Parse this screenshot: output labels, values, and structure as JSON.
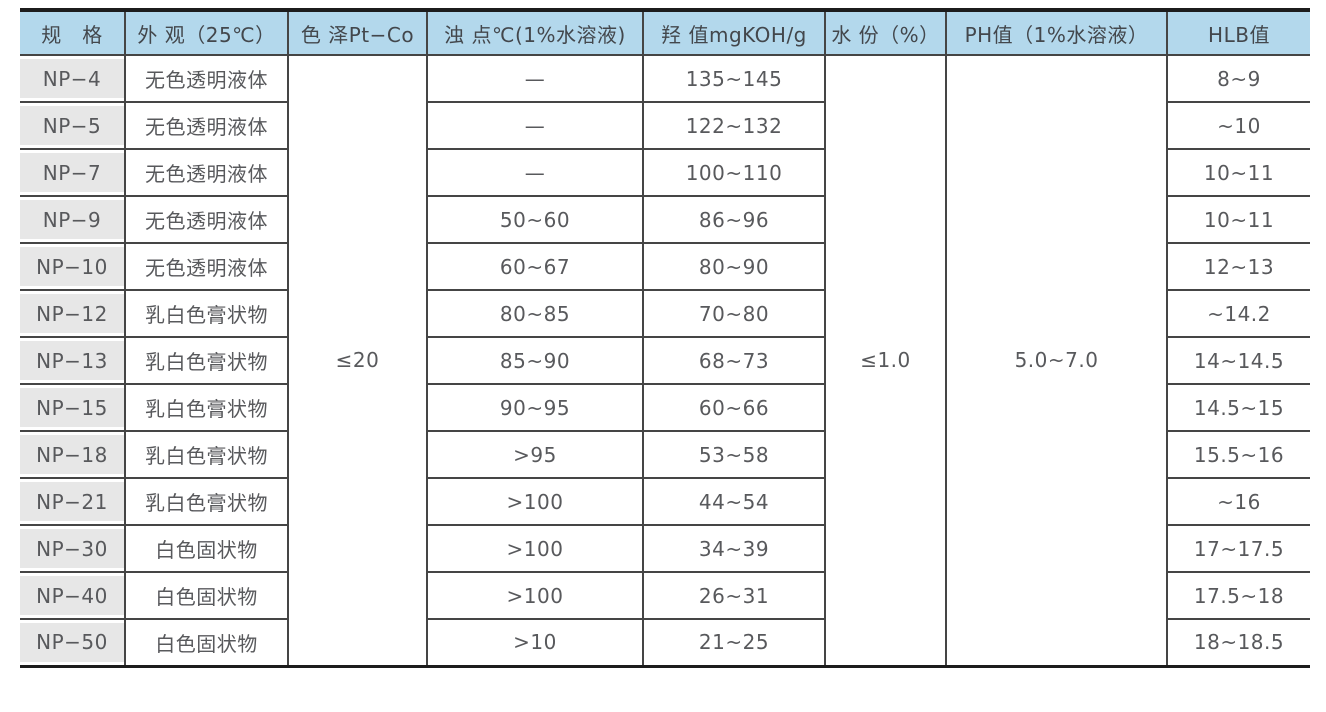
{
  "table": {
    "columns": [
      {
        "key": "spec",
        "label": "规　格"
      },
      {
        "key": "appearance",
        "label": "外 观（25℃）"
      },
      {
        "key": "color",
        "label": "色 泽Pt−Co"
      },
      {
        "key": "cloud_point",
        "label": "浊 点℃(1%水溶液)"
      },
      {
        "key": "hydroxyl",
        "label": "羟 值mgKOH/g"
      },
      {
        "key": "water",
        "label": "水 份（%）"
      },
      {
        "key": "ph",
        "label": "PH值（1%水溶液）"
      },
      {
        "key": "hlb",
        "label": "HLB值"
      }
    ],
    "merged_values": {
      "color": "≤20",
      "water": "≤1.0",
      "ph": "5.0~7.0"
    },
    "rows": [
      {
        "spec": "NP−4",
        "appearance": "无色透明液体",
        "cloud_point": "—",
        "hydroxyl": "135~145",
        "hlb": "8~9"
      },
      {
        "spec": "NP−5",
        "appearance": "无色透明液体",
        "cloud_point": "—",
        "hydroxyl": "122~132",
        "hlb": "~10"
      },
      {
        "spec": "NP−7",
        "appearance": "无色透明液体",
        "cloud_point": "—",
        "hydroxyl": "100~110",
        "hlb": "10~11"
      },
      {
        "spec": "NP−9",
        "appearance": "无色透明液体",
        "cloud_point": "50~60",
        "hydroxyl": "86~96",
        "hlb": "10~11"
      },
      {
        "spec": "NP−10",
        "appearance": "无色透明液体",
        "cloud_point": "60~67",
        "hydroxyl": "80~90",
        "hlb": "12~13"
      },
      {
        "spec": "NP−12",
        "appearance": "乳白色膏状物",
        "cloud_point": "80~85",
        "hydroxyl": "70~80",
        "hlb": "~14.2"
      },
      {
        "spec": "NP−13",
        "appearance": "乳白色膏状物",
        "cloud_point": "85~90",
        "hydroxyl": "68~73",
        "hlb": "14~14.5"
      },
      {
        "spec": "NP−15",
        "appearance": "乳白色膏状物",
        "cloud_point": "90~95",
        "hydroxyl": "60~66",
        "hlb": "14.5~15"
      },
      {
        "spec": "NP−18",
        "appearance": "乳白色膏状物",
        "cloud_point": ">95",
        "hydroxyl": "53~58",
        "hlb": "15.5~16"
      },
      {
        "spec": "NP−21",
        "appearance": "乳白色膏状物",
        "cloud_point": ">100",
        "hydroxyl": "44~54",
        "hlb": "~16"
      },
      {
        "spec": "NP−30",
        "appearance": "白色固状物",
        "cloud_point": ">100",
        "hydroxyl": "34~39",
        "hlb": "17~17.5"
      },
      {
        "spec": "NP−40",
        "appearance": "白色固状物",
        "cloud_point": ">100",
        "hydroxyl": "26~31",
        "hlb": "17.5~18"
      },
      {
        "spec": "NP−50",
        "appearance": "白色固状物",
        "cloud_point": ">10",
        "hydroxyl": "21~25",
        "hlb": "18~18.5"
      }
    ]
  },
  "colors": {
    "heavy_border": "#1c1c1c",
    "grid_line": "#454545",
    "header_bg": "#b3d8ec",
    "spec_bg": "#e7e7e7",
    "header_text": "#43474c",
    "body_text": "#58595c"
  }
}
